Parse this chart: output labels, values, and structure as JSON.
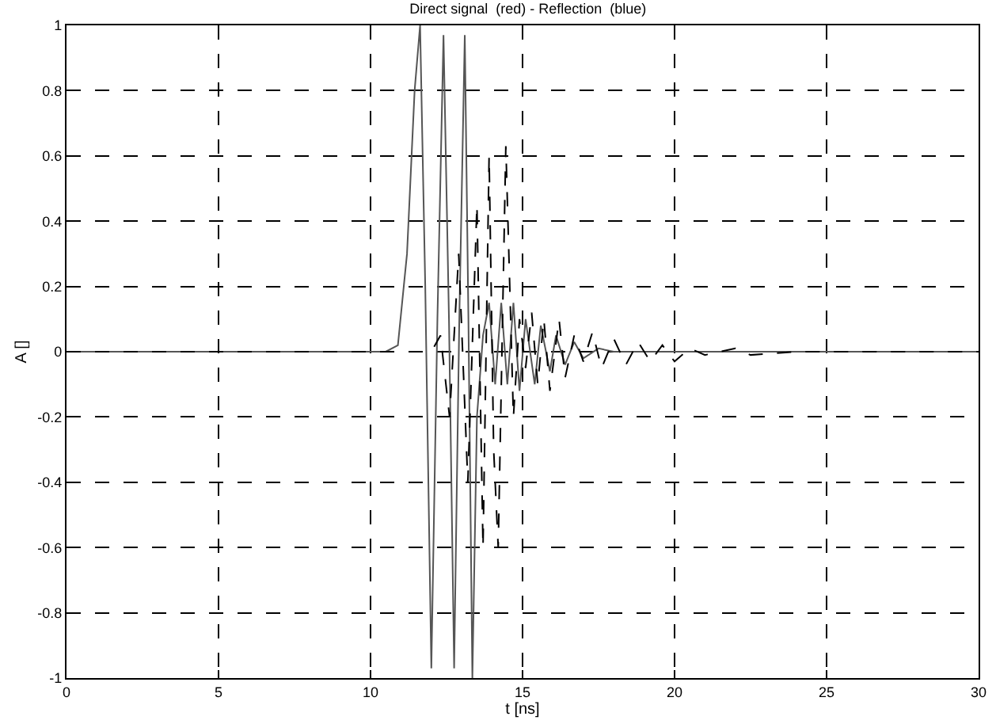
{
  "chart_data": {
    "type": "line",
    "title": "Direct signal  (red) - Reflection  (blue)",
    "xlabel": "t [ns]",
    "ylabel": "A []",
    "xlim": [
      0,
      30
    ],
    "xticks": [
      0,
      5,
      10,
      15,
      20,
      25,
      30
    ],
    "ylim": [
      -1,
      1
    ],
    "yticks": [
      -1,
      -0.8,
      -0.6,
      -0.4,
      -0.2,
      0,
      0.2,
      0.4,
      0.6,
      0.8,
      1
    ],
    "grid": true,
    "legend": false,
    "series": [
      {
        "color": "#555555",
        "line_style": "solid",
        "x": [
          0,
          10.5,
          10.9,
          11.2,
          11.45,
          11.63,
          11.8,
          12.0,
          12.2,
          12.4,
          12.58,
          12.75,
          12.92,
          13.1,
          13.22,
          13.35,
          13.5,
          13.7,
          13.9,
          14.1,
          14.3,
          14.5,
          14.7,
          14.9,
          15.1,
          15.4,
          15.6,
          15.9,
          16.1,
          16.4,
          16.7,
          17.0,
          17.5,
          18.0,
          19.0,
          30
        ],
        "values": [
          0,
          0,
          0.02,
          0.3,
          0.8,
          1.0,
          0.2,
          -0.97,
          0.1,
          0.97,
          0.1,
          -0.97,
          0.1,
          0.97,
          0.1,
          -1.0,
          -0.2,
          0.05,
          0.15,
          -0.1,
          0.15,
          -0.1,
          0.15,
          -0.12,
          0.1,
          -0.1,
          0.08,
          -0.06,
          0.05,
          -0.04,
          0.03,
          -0.02,
          0.01,
          0,
          0,
          0
        ]
      },
      {
        "color": "#000000",
        "line_style": "dashed",
        "x": [
          0,
          12.0,
          12.3,
          12.6,
          12.9,
          13.2,
          13.5,
          13.7,
          13.9,
          14.05,
          14.2,
          14.45,
          14.7,
          14.9,
          15.1,
          15.3,
          15.5,
          15.7,
          15.9,
          16.2,
          16.4,
          16.7,
          17.0,
          17.3,
          17.6,
          18.0,
          18.4,
          18.8,
          19.2,
          19.6,
          20.0,
          20.5,
          21.0,
          22.0,
          22.5,
          24.0,
          30
        ],
        "values": [
          0,
          0,
          0.05,
          -0.2,
          0.3,
          -0.4,
          0.45,
          -0.6,
          0.6,
          -0.3,
          -0.6,
          0.63,
          -0.2,
          0.1,
          -0.05,
          0.12,
          -0.1,
          0.1,
          -0.12,
          0.1,
          -0.08,
          0.05,
          -0.03,
          0.06,
          -0.05,
          0.04,
          -0.04,
          0.03,
          -0.03,
          0.02,
          -0.03,
          0.01,
          -0.01,
          0.01,
          -0.01,
          0,
          0
        ]
      }
    ]
  }
}
